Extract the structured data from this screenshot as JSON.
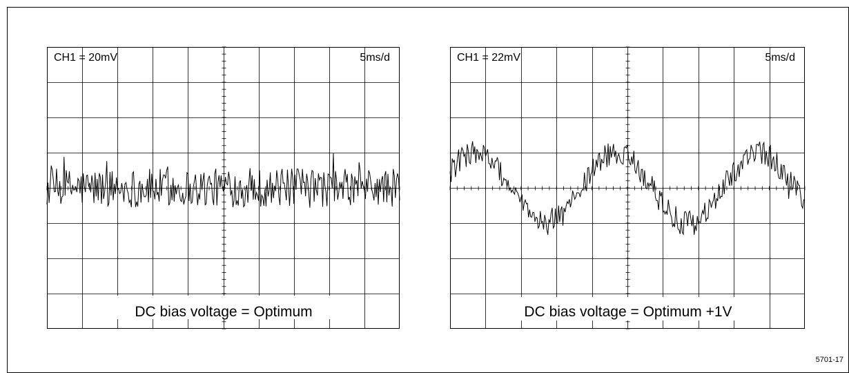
{
  "figure": {
    "id": "5701-17"
  },
  "colors": {
    "trace": "#000000",
    "grid": "#000000",
    "background": "#ffffff"
  },
  "chart_data": [
    {
      "type": "line",
      "channel_label": "CH1 = 20mV",
      "timebase_label": "5ms/d",
      "caption": "DC bias voltage = Optimum",
      "grid": true,
      "divisions": {
        "x": 10,
        "y": 8
      },
      "xlim": [
        0,
        10
      ],
      "ylim": [
        -4,
        4
      ],
      "series": [
        {
          "shape": "noise",
          "offset": 0,
          "amplitude": 0,
          "cycles": 0,
          "noise": 0.55
        }
      ]
    },
    {
      "type": "line",
      "channel_label": "CH1 = 22mV",
      "timebase_label": "5ms/d",
      "caption": "DC bias voltage = Optimum +1V",
      "grid": true,
      "divisions": {
        "x": 10,
        "y": 8
      },
      "xlim": [
        0,
        10
      ],
      "ylim": [
        -4,
        4
      ],
      "series": [
        {
          "shape": "sine",
          "offset": 0,
          "amplitude": 1.0,
          "cycles": 2.5,
          "noise": 0.35
        }
      ]
    }
  ]
}
